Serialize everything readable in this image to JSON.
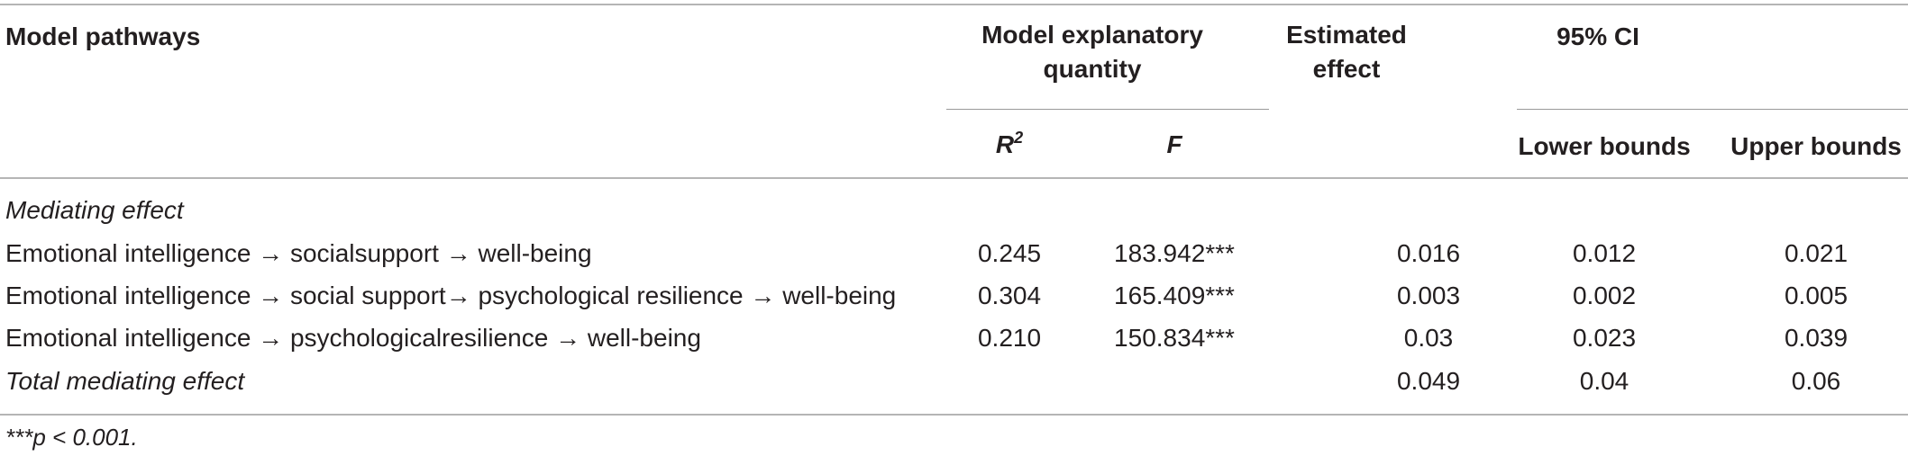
{
  "table": {
    "headers": {
      "pathways": "Model pathways",
      "explanatory": "Model explanatory quantity",
      "estimated": "Estimated effect",
      "ci": "95% CI",
      "r2_base": "R",
      "r2_sup": "2",
      "f": "F",
      "lower": "Lower bounds",
      "upper": "Upper bounds"
    },
    "section_label": "Mediating effect",
    "rows": [
      {
        "pathway": "Emotional intelligence → socialsupport → well-being",
        "r2": "0.245",
        "f": "183.942***",
        "effect": "0.016",
        "lower": "0.012",
        "upper": "0.021"
      },
      {
        "pathway": "Emotional intelligence → social support→ psychological resilience → well-being",
        "r2": "0.304",
        "f": "165.409***",
        "effect": "0.003",
        "lower": "0.002",
        "upper": "0.005"
      },
      {
        "pathway": "Emotional intelligence → psychologicalresilience → well-being",
        "r2": "0.210",
        "f": "150.834***",
        "effect": "0.03",
        "lower": "0.023",
        "upper": "0.039"
      }
    ],
    "total": {
      "label": "Total mediating effect",
      "effect": "0.049",
      "lower": "0.04",
      "upper": "0.06"
    },
    "footnote": "***p < 0.001."
  }
}
